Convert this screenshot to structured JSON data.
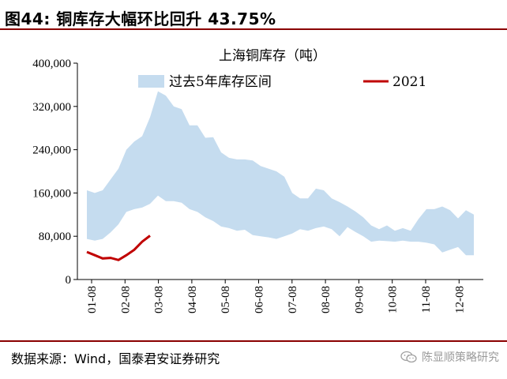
{
  "header": {
    "title": "图44: 铜库存大幅环比回升 43.75%"
  },
  "footer": {
    "source": "数据来源：Wind，国泰君安证券研究",
    "watermark": "陈显顺策略研究"
  },
  "colors": {
    "band": "#c5dcef",
    "line": "#c00000",
    "rule": "#8a0000"
  },
  "chart_data": {
    "type": "area",
    "title": "上海铜库存（吨）",
    "ylim": [
      0,
      400000
    ],
    "yticks": [
      "0",
      "80,000",
      "160,000",
      "240,000",
      "320,000",
      "400,000"
    ],
    "ytick_values": [
      0,
      80000,
      160000,
      240000,
      320000,
      400000
    ],
    "xticks": [
      "01-08",
      "02-08",
      "03-08",
      "04-08",
      "05-08",
      "06-08",
      "07-08",
      "08-08",
      "09-08",
      "10-08",
      "11-08",
      "12-08"
    ],
    "legend": {
      "placement": "top",
      "band_label": "过去5年库存区间",
      "line_label": "2021"
    },
    "band_upper": [
      165000,
      160000,
      165000,
      185000,
      205000,
      240000,
      255000,
      265000,
      300000,
      348000,
      340000,
      320000,
      315000,
      285000,
      285000,
      262000,
      263000,
      235000,
      225000,
      222000,
      222000,
      220000,
      210000,
      205000,
      200000,
      190000,
      160000,
      150000,
      150000,
      168000,
      165000,
      150000,
      143000,
      135000,
      126000,
      115000,
      100000,
      93000,
      100000,
      90000,
      95000,
      90000,
      112000,
      130000,
      130000,
      135000,
      128000,
      113000,
      128000,
      120000
    ],
    "band_lower": [
      75000,
      72000,
      75000,
      87000,
      102000,
      125000,
      130000,
      133000,
      140000,
      155000,
      145000,
      145000,
      142000,
      130000,
      125000,
      115000,
      108000,
      98000,
      95000,
      90000,
      92000,
      82000,
      80000,
      78000,
      75000,
      80000,
      85000,
      93000,
      90000,
      95000,
      98000,
      93000,
      80000,
      97000,
      88000,
      80000,
      70000,
      72000,
      71000,
      70000,
      72000,
      70000,
      70000,
      68000,
      65000,
      50000,
      55000,
      60000,
      45000,
      45000
    ],
    "series": [
      {
        "name": "2021",
        "values": [
          51000,
          45000,
          39000,
          40000,
          36000,
          45000,
          55000,
          70000,
          81000
        ]
      }
    ]
  }
}
